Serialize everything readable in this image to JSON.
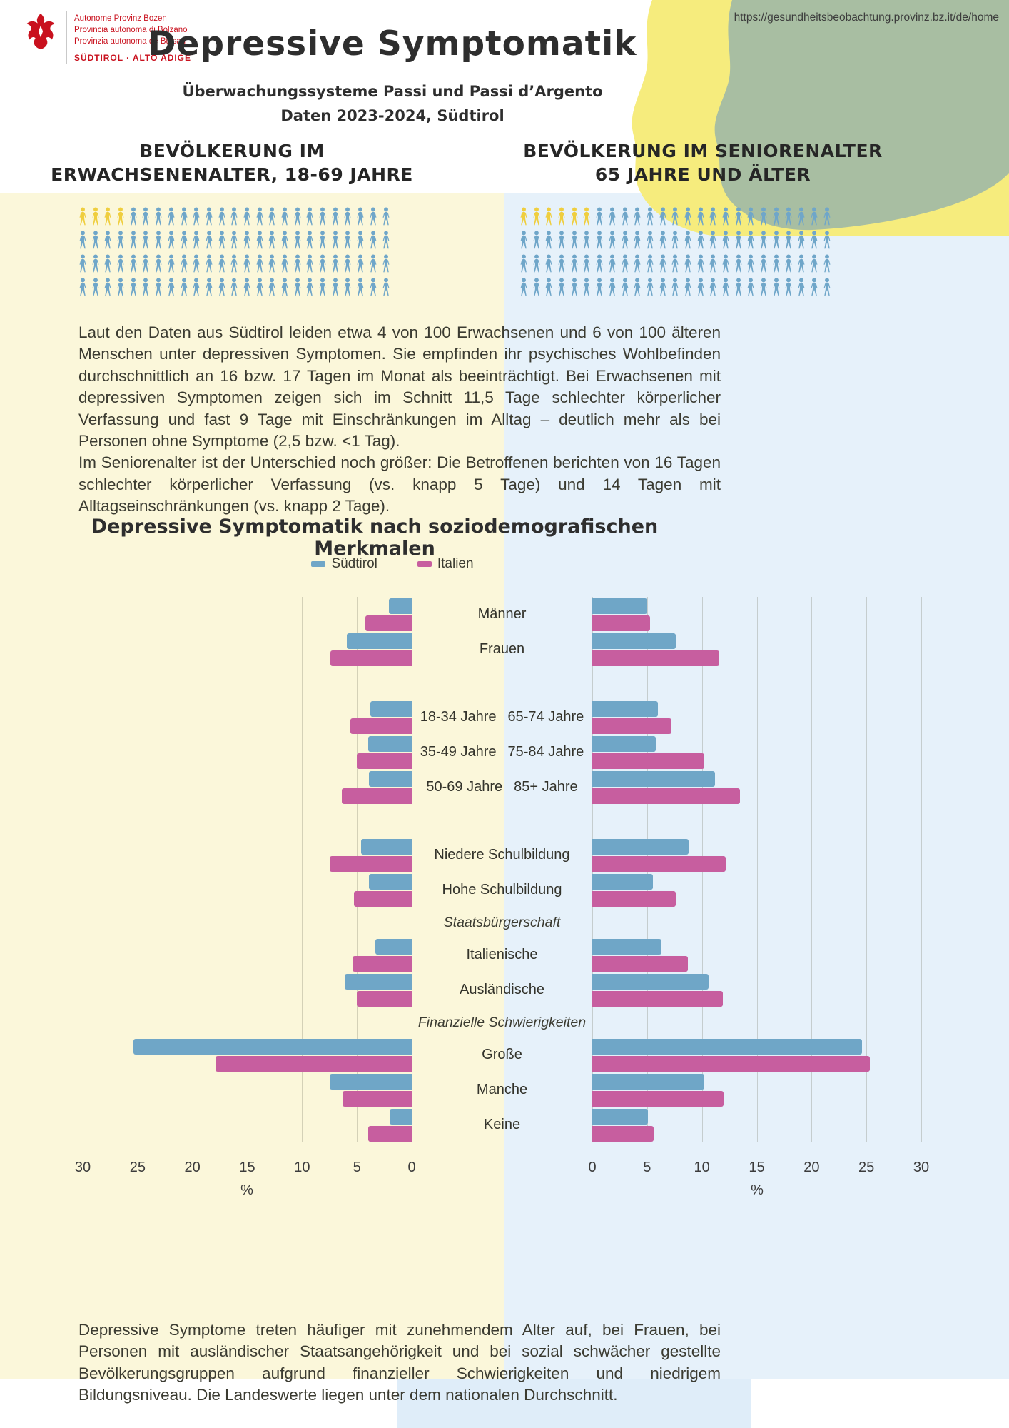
{
  "page": {
    "url": "https://gesundheitsbeobachtung.provinz.bz.it/de/home"
  },
  "logo": {
    "line1": "Autonome Provinz Bozen",
    "line2": "Provincia autonoma di Bolzano",
    "line3": "Provinzia autonoma de Bulsan",
    "line4": "SÜDTIROL · ALTO ADIGE"
  },
  "header": {
    "title": "Depressive Symptomatik",
    "subtitle1": "Überwachungssysteme Passi und Passi d’Argento",
    "subtitle2": "Daten 2023-2024, Südtirol"
  },
  "sections": {
    "adults_line1": "BEVÖLKERUNG IM",
    "adults_line2": "ERWACHSENENALTER, 18-69 JAHRE",
    "seniors_line1": "BEVÖLKERUNG IM SENIORENALTER",
    "seniors_line2": "65 JAHRE UND ÄLTER"
  },
  "pictograms": {
    "rows": 4,
    "columns": 25,
    "adults": {
      "total": 100,
      "highlighted": 4
    },
    "seniors": {
      "total": 100,
      "highlighted": 6
    }
  },
  "body_text": {
    "paragraph1": "Laut den Daten aus Südtirol leiden etwa 4 von 100 Erwachsenen und 6 von 100 älteren Menschen unter depressiven Symptomen. Sie empfinden ihr psychisches Wohlbefinden durchschnittlich an 16 bzw. 17 Tagen im Monat als beeinträchtigt. Bei Erwachsenen mit depressiven Symptomen zeigen sich im Schnitt 11,5 Tage schlechter körperlicher Verfassung und fast 9 Tage mit Einschränkungen im Alltag – deutlich mehr als bei Personen ohne Symptome (2,5 bzw. <1 Tag).",
    "paragraph2": "Im Seniorenalter ist der Unterschied noch größer: Die Betroffenen berichten von 16 Tagen schlechter körperlicher Verfassung (vs. knapp 5 Tage) und 14 Tagen mit Alltagseinschränkungen (vs. knapp 2 Tage)."
  },
  "chart_data": {
    "type": "bar",
    "orientation": "horizontal-diverging",
    "title": "Depressive Symptomatik nach soziodemografischen Merkmalen",
    "legend": [
      "Südtirol",
      "Italien"
    ],
    "series_order": [
      "Südtirol",
      "Italien"
    ],
    "unit": "%",
    "xlim": [
      0,
      30
    ],
    "gridline_step": 5,
    "axis_ticks_left": [
      30,
      25,
      20,
      15,
      10,
      5,
      0
    ],
    "axis_ticks_right": [
      0,
      5,
      10,
      15,
      20,
      25,
      30
    ],
    "panels": [
      "Erwachsene 18-69 Jahre (links)",
      "Senioren 65+ (rechts)"
    ],
    "rows": [
      {
        "label": "Männer",
        "adults": [
          2.1,
          4.2
        ],
        "seniors": [
          5.0,
          5.3
        ]
      },
      {
        "label": "Frauen",
        "adults": [
          5.9,
          7.4
        ],
        "seniors": [
          7.6,
          11.6
        ]
      },
      {
        "gap": true
      },
      {
        "label": "18-34 Jahre",
        "label_seniors": "65-74 Jahre",
        "adults": [
          3.8,
          5.6
        ],
        "seniors": [
          6.0,
          7.2
        ]
      },
      {
        "label": "35-49 Jahre",
        "label_seniors": "75-84 Jahre",
        "adults": [
          4.0,
          5.0
        ],
        "seniors": [
          5.8,
          10.2
        ]
      },
      {
        "label": "50-69 Jahre",
        "label_seniors": "85+ Jahre",
        "adults": [
          3.9,
          6.4
        ],
        "seniors": [
          11.2,
          13.5
        ]
      },
      {
        "gap": true
      },
      {
        "label": "Niedere Schulbildung",
        "adults": [
          4.6,
          7.5
        ],
        "seniors": [
          8.8,
          12.2
        ]
      },
      {
        "label": "Hohe Schulbildung",
        "adults": [
          3.9,
          5.3
        ],
        "seniors": [
          5.5,
          7.6
        ]
      },
      {
        "header": "Staatsbürgerschaft"
      },
      {
        "label": "Italienische",
        "adults": [
          3.3,
          5.4
        ],
        "seniors": [
          6.3,
          8.7
        ]
      },
      {
        "label": "Ausländische",
        "adults": [
          6.1,
          5.0
        ],
        "seniors": [
          10.6,
          11.9
        ]
      },
      {
        "header": "Finanzielle Schwierigkeiten"
      },
      {
        "label": "Große",
        "adults": [
          25.4,
          17.9
        ],
        "seniors": [
          24.6,
          25.3
        ]
      },
      {
        "label": "Manche",
        "adults": [
          7.5,
          6.3
        ],
        "seniors": [
          10.2,
          12.0
        ]
      },
      {
        "label": "Keine",
        "adults": [
          2.0,
          4.0
        ],
        "seniors": [
          5.1,
          5.6
        ]
      }
    ]
  },
  "footer_text": {
    "paragraph": "Depressive Symptome treten häufiger mit zunehmendem Alter auf, bei Frauen, bei Personen mit ausländischer Staatsangehörigkeit und bei sozial schwächer gestellte Bevölkerungsgruppen aufgrund finanzieller Schwierigkeiten und niedrigem Bildungsniveau. Die Landeswerte liegen unter dem nationalen Durchschnitt."
  },
  "colors": {
    "suedtirol_bar": "#6FA6C7",
    "italien_bar": "#C75E9F",
    "icon_blue": "#6FA6C9",
    "icon_yellow": "#EFCE3E",
    "panel_yellow": "#FBF7DA",
    "panel_blue": "#E6F1FA",
    "logo_red": "#C9111E",
    "face_yellow": "#F6EC7D",
    "face_green": "#A8BEA2"
  }
}
